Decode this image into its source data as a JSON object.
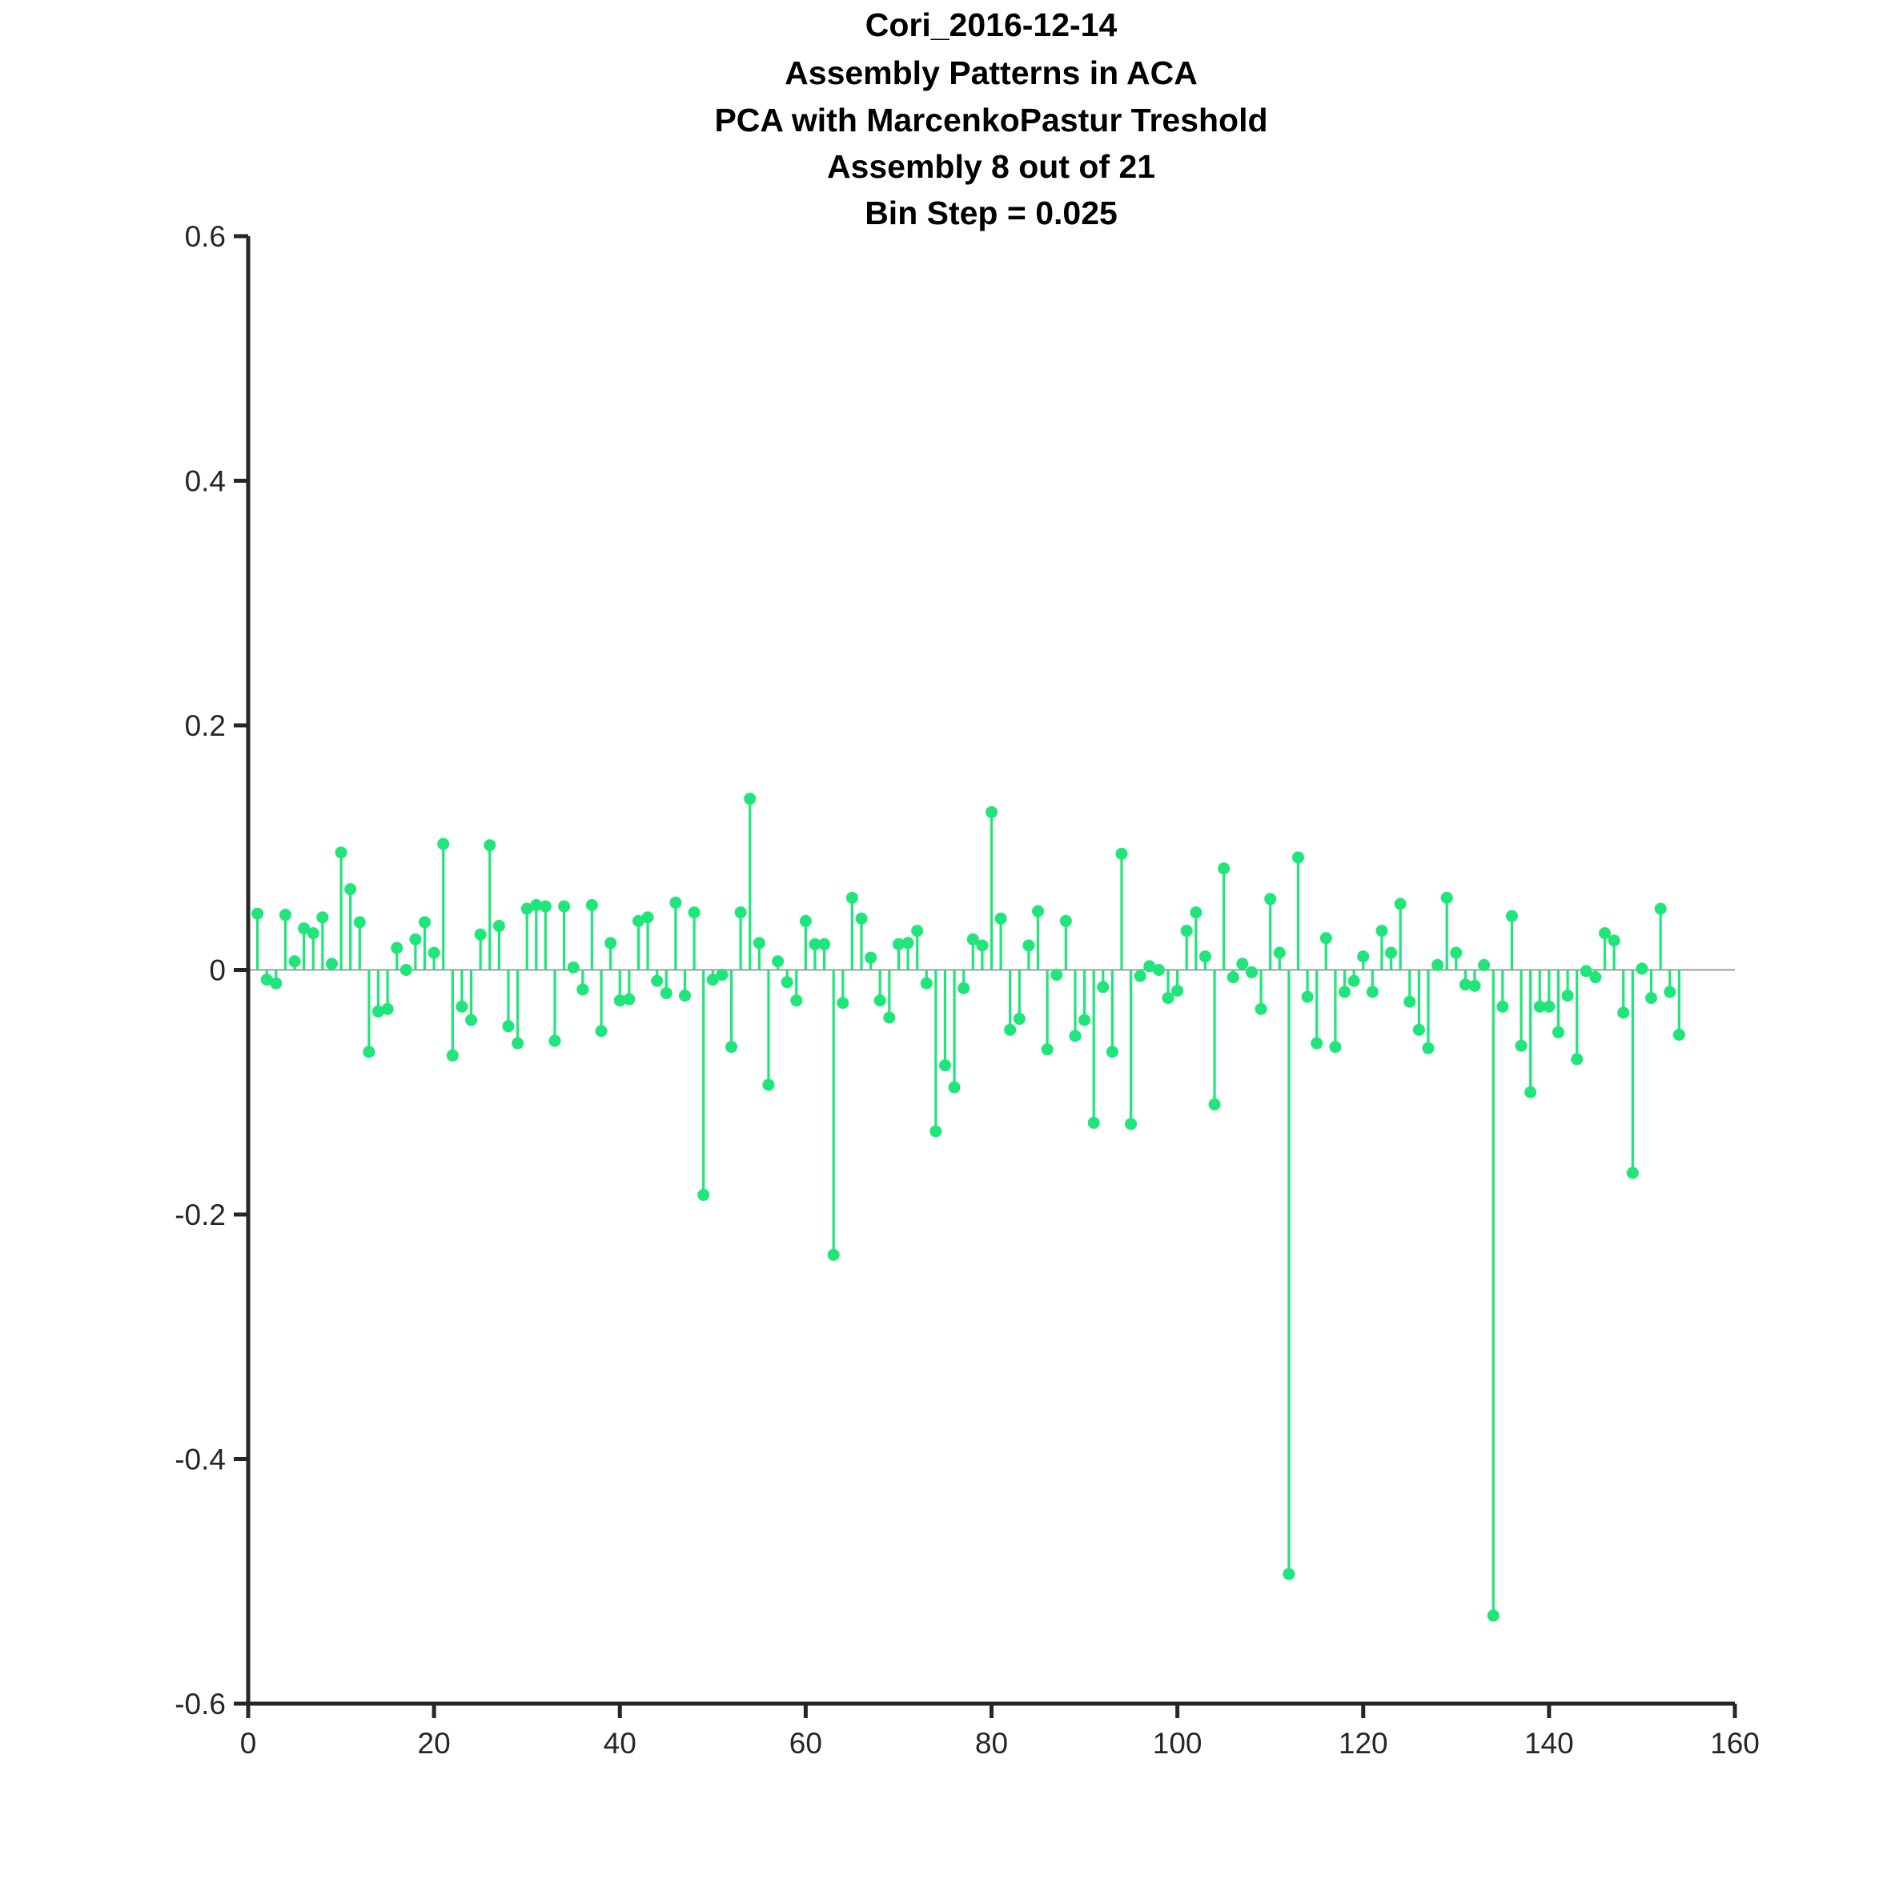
{
  "chart_data": {
    "type": "stem",
    "title_lines": [
      "Cori_2016-12-14",
      "Assembly Patterns in ACA",
      "PCA with MarcenkoPastur Treshold",
      "Assembly 8 out of 21",
      "Bin Step = 0.025"
    ],
    "xlabel": "",
    "ylabel": "",
    "xlim": [
      0,
      160
    ],
    "ylim": [
      -0.6,
      0.6
    ],
    "x_ticks": [
      0,
      20,
      40,
      60,
      80,
      100,
      120,
      140,
      160
    ],
    "x_tick_labels": [
      "0",
      "20",
      "40",
      "60",
      "80",
      "100",
      "120",
      "140",
      "160"
    ],
    "y_ticks": [
      0.6,
      0.4,
      0.2,
      0,
      -0.2,
      -0.4,
      -0.6
    ],
    "y_tick_labels": [
      "0.6",
      "0.4",
      "0.2",
      "0",
      "-0.2",
      "-0.4",
      "-0.6"
    ],
    "grid": false,
    "color": "#1fe57a",
    "baseline_color": "#808080",
    "axis_color": "#262626",
    "series": [
      {
        "x": [
          1,
          2,
          3,
          4,
          5,
          6,
          7,
          8,
          9,
          10,
          11,
          12,
          13,
          14,
          15,
          16,
          17,
          18,
          19,
          20,
          21,
          22,
          23,
          24,
          25,
          26,
          27,
          28,
          29,
          30,
          31,
          32,
          33,
          34,
          35,
          36,
          37,
          38,
          39,
          40,
          41,
          42,
          43,
          44,
          45,
          46,
          47,
          48,
          49,
          50,
          51,
          52,
          53,
          54,
          55,
          56,
          57,
          58,
          59,
          60,
          61,
          62,
          63,
          64,
          65,
          66,
          67,
          68,
          69,
          70,
          71,
          72,
          73,
          74,
          75,
          76,
          77,
          78,
          79,
          80,
          81,
          82,
          83,
          84,
          85,
          86,
          87,
          88,
          89,
          90,
          91,
          92,
          93,
          94,
          95,
          96,
          97,
          98,
          99,
          100,
          101,
          102,
          103,
          104,
          105,
          106,
          107,
          108,
          109,
          110,
          111,
          112,
          113,
          114,
          115,
          116,
          117,
          118,
          119,
          120,
          121,
          122,
          123,
          124,
          125,
          126,
          127,
          128,
          129,
          130,
          131,
          132,
          133,
          134,
          135,
          136,
          137,
          138,
          139,
          140,
          141,
          142,
          143,
          144,
          145,
          146,
          147,
          148,
          149,
          150,
          151,
          152,
          153,
          154
        ],
        "y": [
          0.046,
          -0.008,
          -0.011,
          0.045,
          0.007,
          0.034,
          0.03,
          0.043,
          0.005,
          0.096,
          0.066,
          0.039,
          -0.067,
          -0.034,
          -0.032,
          0.018,
          0.0,
          0.025,
          0.039,
          0.014,
          0.103,
          -0.07,
          -0.03,
          -0.041,
          0.029,
          0.102,
          0.036,
          -0.046,
          -0.06,
          0.05,
          0.053,
          0.052,
          -0.058,
          0.052,
          0.002,
          -0.016,
          0.053,
          -0.05,
          0.022,
          -0.025,
          -0.024,
          0.04,
          0.043,
          -0.009,
          -0.019,
          0.055,
          -0.021,
          0.047,
          -0.184,
          -0.008,
          -0.004,
          -0.063,
          0.047,
          0.14,
          0.022,
          -0.094,
          0.007,
          -0.01,
          -0.025,
          0.04,
          0.021,
          0.021,
          -0.233,
          -0.027,
          0.059,
          0.042,
          0.01,
          -0.025,
          -0.039,
          0.021,
          0.022,
          0.032,
          -0.011,
          -0.132,
          -0.078,
          -0.096,
          -0.015,
          0.025,
          0.02,
          0.129,
          0.042,
          -0.049,
          -0.04,
          0.02,
          0.048,
          -0.065,
          -0.004,
          0.04,
          -0.054,
          -0.041,
          -0.125,
          -0.014,
          -0.067,
          0.095,
          -0.126,
          -0.005,
          0.003,
          0.0,
          -0.023,
          -0.017,
          0.032,
          0.047,
          0.011,
          -0.11,
          0.083,
          -0.006,
          0.005,
          -0.002,
          -0.032,
          0.058,
          0.014,
          -0.494,
          0.092,
          -0.022,
          -0.06,
          0.026,
          -0.063,
          -0.018,
          -0.009,
          0.011,
          -0.018,
          0.032,
          0.014,
          0.054,
          -0.026,
          -0.049,
          -0.064,
          0.004,
          0.059,
          0.014,
          -0.012,
          -0.013,
          0.004,
          -0.528,
          -0.03,
          0.044,
          -0.062,
          -0.1,
          -0.03,
          -0.03,
          -0.051,
          -0.021,
          -0.073,
          -0.001,
          -0.006,
          0.03,
          0.024,
          -0.035,
          -0.166,
          0.001,
          -0.023,
          0.05,
          -0.018,
          -0.053
        ]
      }
    ]
  }
}
